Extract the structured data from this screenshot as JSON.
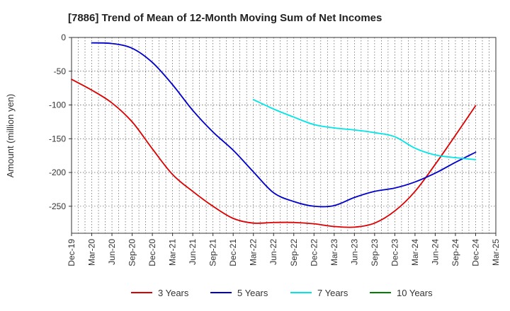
{
  "chart_data": {
    "type": "line",
    "title": "[7886]  Trend of Mean of 12-Month Moving Sum of Net Incomes",
    "xlabel": "",
    "ylabel": "Amount (million yen)",
    "ylim": [
      -290,
      0
    ],
    "yticks": [
      0,
      -50,
      -100,
      -150,
      -200,
      -250
    ],
    "x_ticks": [
      "Dec-19",
      "Mar-20",
      "Jun-20",
      "Sep-20",
      "Dec-20",
      "Mar-21",
      "Jun-21",
      "Sep-21",
      "Dec-21",
      "Mar-22",
      "Jun-22",
      "Sep-22",
      "Dec-22",
      "Mar-23",
      "Jun-23",
      "Sep-23",
      "Dec-23",
      "Mar-24",
      "Jun-24",
      "Sep-24",
      "Dec-24",
      "Mar-25"
    ],
    "grid": true,
    "legend_position": "bottom",
    "series": [
      {
        "name": "3 Years",
        "color": "#dd0000",
        "points": [
          [
            "Dec-19",
            -62
          ],
          [
            "Mar-20",
            -78
          ],
          [
            "Jun-20",
            -97
          ],
          [
            "Sep-20",
            -125
          ],
          [
            "Dec-20",
            -165
          ],
          [
            "Mar-21",
            -203
          ],
          [
            "Jun-21",
            -228
          ],
          [
            "Sep-21",
            -250
          ],
          [
            "Dec-21",
            -268
          ],
          [
            "Mar-22",
            -275
          ],
          [
            "Jun-22",
            -274
          ],
          [
            "Sep-22",
            -274
          ],
          [
            "Dec-22",
            -276
          ],
          [
            "Mar-23",
            -280
          ],
          [
            "Jun-23",
            -281
          ],
          [
            "Sep-23",
            -275
          ],
          [
            "Dec-23",
            -257
          ],
          [
            "Mar-24",
            -228
          ],
          [
            "Jun-24",
            -188
          ],
          [
            "Sep-24",
            -145
          ],
          [
            "Dec-24",
            -101
          ]
        ]
      },
      {
        "name": "5 Years",
        "color": "#0000cc",
        "points": [
          [
            "Mar-20",
            -8
          ],
          [
            "Jun-20",
            -9
          ],
          [
            "Sep-20",
            -16
          ],
          [
            "Dec-20",
            -37
          ],
          [
            "Mar-21",
            -70
          ],
          [
            "Jun-21",
            -108
          ],
          [
            "Sep-21",
            -140
          ],
          [
            "Dec-21",
            -167
          ],
          [
            "Mar-22",
            -199
          ],
          [
            "Jun-22",
            -230
          ],
          [
            "Sep-22",
            -243
          ],
          [
            "Dec-22",
            -250
          ],
          [
            "Mar-23",
            -249
          ],
          [
            "Jun-23",
            -237
          ],
          [
            "Sep-23",
            -228
          ],
          [
            "Dec-23",
            -223
          ],
          [
            "Mar-24",
            -214
          ],
          [
            "Jun-24",
            -201
          ],
          [
            "Sep-24",
            -185
          ],
          [
            "Dec-24",
            -170
          ]
        ]
      },
      {
        "name": "7 Years",
        "color": "#00e5e5",
        "points": [
          [
            "Mar-22",
            -92
          ],
          [
            "Jun-22",
            -106
          ],
          [
            "Sep-22",
            -118
          ],
          [
            "Dec-22",
            -129
          ],
          [
            "Mar-23",
            -134
          ],
          [
            "Jun-23",
            -137
          ],
          [
            "Sep-23",
            -141
          ],
          [
            "Dec-23",
            -147
          ],
          [
            "Mar-24",
            -164
          ],
          [
            "Jun-24",
            -174
          ],
          [
            "Sep-24",
            -178
          ],
          [
            "Dec-24",
            -181
          ]
        ]
      },
      {
        "name": "10 Years",
        "color": "#008000",
        "points": []
      }
    ]
  }
}
